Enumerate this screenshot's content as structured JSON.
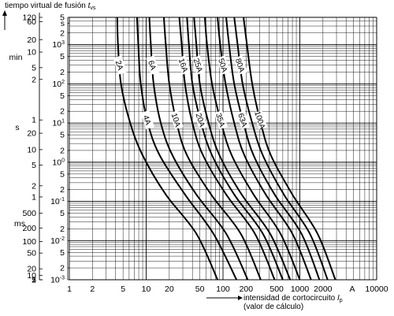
{
  "chart_data": {
    "type": "line",
    "ylabel_prefix": "tiempo virtual de fusión ",
    "ylabel_symbol": "t",
    "ylabel_sub": "vs",
    "xlabel_line1_prefix": "intensidad de cortocircuito ",
    "xlabel_symbol": "I",
    "xlabel_sub": "p",
    "xlabel_line2": "(valor de cálculo)",
    "x_unit": "A",
    "x_scale": "log",
    "y_scale": "log",
    "grid": true,
    "xlim": [
      1,
      10000
    ],
    "ylim_seconds": [
      0.001,
      5
    ],
    "x_tick_labels": [
      {
        "value": 1,
        "label": "1"
      },
      {
        "value": 2,
        "label": "2"
      },
      {
        "value": 5,
        "label": "5"
      },
      {
        "value": 10,
        "label": "10"
      },
      {
        "value": 20,
        "label": "20"
      },
      {
        "value": 50,
        "label": "50"
      },
      {
        "value": 100,
        "label": "100"
      },
      {
        "value": 200,
        "label": "200"
      },
      {
        "value": 500,
        "label": "500"
      },
      {
        "value": 1000,
        "label": "1000"
      },
      {
        "value": 2000,
        "label": "2000"
      },
      {
        "value": 10000,
        "label": "10000"
      }
    ],
    "y_inner_labels": [
      {
        "value": 5,
        "label": "5",
        "exp": ""
      },
      {
        "value": 3.5,
        "label": "s",
        "exp": ""
      },
      {
        "value": 2,
        "label": "2",
        "exp": ""
      },
      {
        "value": 1,
        "label": "10",
        "exp": "3"
      },
      {
        "value": 0.5,
        "label": "5",
        "exp": ""
      },
      {
        "value": 0.2,
        "label": "2",
        "exp": ""
      },
      {
        "value": 0.1,
        "label": "10",
        "exp": "2"
      },
      {
        "value": 0.05,
        "label": "5",
        "exp": ""
      },
      {
        "value": 0.02,
        "label": "2",
        "exp": ""
      },
      {
        "value": 0.01,
        "label": "10",
        "exp": "1"
      },
      {
        "value": 0.005,
        "label": "5",
        "exp": ""
      },
      {
        "value": 0.002,
        "label": "2",
        "exp": ""
      },
      {
        "value": 0.001,
        "label": "10",
        "exp": "0"
      },
      {
        "value": 0.0005,
        "label": "5",
        "exp": ""
      },
      {
        "value": 0.0002,
        "label": "2",
        "exp": ""
      },
      {
        "value": 0.0001,
        "label": "10",
        "exp": "-1"
      },
      {
        "value": 5e-05,
        "label": "5",
        "exp": ""
      },
      {
        "value": 2e-05,
        "label": "2",
        "exp": ""
      },
      {
        "value": 1e-05,
        "label": "10",
        "exp": "-2"
      },
      {
        "value": 5e-06,
        "label": "5",
        "exp": ""
      },
      {
        "value": 2e-06,
        "label": "2",
        "exp": ""
      },
      {
        "value": 1e-06,
        "label": "10",
        "exp": "-3"
      }
    ],
    "y_outer_labels": [
      {
        "value": 5,
        "label": "120"
      },
      {
        "value": 3.9,
        "label": "60"
      },
      {
        "value": 1.35,
        "label": "20"
      },
      {
        "value": 0.65,
        "label": "10"
      },
      {
        "value": 0.26,
        "label": "5"
      },
      {
        "value": 0.13,
        "label": "2"
      },
      {
        "value": 0.012,
        "label": "1"
      },
      {
        "value": 0.0055,
        "label": "20"
      },
      {
        "value": 0.0021,
        "label": "10"
      },
      {
        "value": 0.00085,
        "label": "5"
      },
      {
        "value": 0.00025,
        "label": "2"
      },
      {
        "value": 0.00013,
        "label": "1"
      },
      {
        "value": 5e-05,
        "label": "500"
      },
      {
        "value": 2.1e-05,
        "label": "200"
      },
      {
        "value": 9.5e-06,
        "label": "100"
      },
      {
        "value": 4.8e-06,
        "label": "50"
      },
      {
        "value": 1.9e-06,
        "label": "20"
      },
      {
        "value": 1.3e-06,
        "label": "10"
      },
      {
        "value": 9e-07,
        "label": "5"
      },
      {
        "value": 4.5e-07,
        "label": "2"
      },
      {
        "value": 1e-06,
        "label": "1"
      }
    ],
    "unit_labels": [
      "min",
      "s",
      "ms"
    ],
    "series": [
      {
        "name": "2A",
        "points": [
          [
            4.2,
            5
          ],
          [
            4.3,
            1
          ],
          [
            4.7,
            0.1
          ],
          [
            6.2,
            0.01
          ],
          [
            9,
            0.0015
          ],
          [
            18,
            0.00015
          ],
          [
            45,
            1.5e-05
          ],
          [
            85,
            1e-06
          ]
        ]
      },
      {
        "name": "4A",
        "points": [
          [
            7.6,
            5
          ],
          [
            7.9,
            1
          ],
          [
            8.5,
            0.1
          ],
          [
            10.5,
            0.01
          ],
          [
            15,
            0.0015
          ],
          [
            32,
            0.00015
          ],
          [
            75,
            1.5e-05
          ],
          [
            150,
            1e-06
          ]
        ]
      },
      {
        "name": "6A",
        "points": [
          [
            11,
            5
          ],
          [
            11.5,
            1
          ],
          [
            12.5,
            0.1
          ],
          [
            15.5,
            0.01
          ],
          [
            22,
            0.0015
          ],
          [
            45,
            0.00015
          ],
          [
            110,
            1.5e-05
          ],
          [
            210,
            1e-06
          ]
        ]
      },
      {
        "name": "10A",
        "points": [
          [
            17,
            5
          ],
          [
            18,
            1
          ],
          [
            20,
            0.1
          ],
          [
            25,
            0.01
          ],
          [
            34,
            0.0015
          ],
          [
            70,
            0.00015
          ],
          [
            170,
            1.5e-05
          ],
          [
            310,
            1e-06
          ]
        ]
      },
      {
        "name": "16A",
        "points": [
          [
            27,
            5
          ],
          [
            29,
            1
          ],
          [
            32,
            0.1
          ],
          [
            40,
            0.01
          ],
          [
            55,
            0.0015
          ],
          [
            110,
            0.00015
          ],
          [
            260,
            1.5e-05
          ],
          [
            470,
            1e-06
          ]
        ]
      },
      {
        "name": "20A",
        "points": [
          [
            34,
            5
          ],
          [
            36,
            1
          ],
          [
            40,
            0.1
          ],
          [
            52,
            0.01
          ],
          [
            72,
            0.0015
          ],
          [
            140,
            0.00015
          ],
          [
            330,
            1.5e-05
          ],
          [
            600,
            1e-06
          ]
        ]
      },
      {
        "name": "25A",
        "points": [
          [
            42,
            5
          ],
          [
            45,
            1
          ],
          [
            50,
            0.1
          ],
          [
            65,
            0.01
          ],
          [
            90,
            0.0015
          ],
          [
            175,
            0.00015
          ],
          [
            410,
            1.5e-05
          ],
          [
            750,
            1e-06
          ]
        ]
      },
      {
        "name": "35A",
        "points": [
          [
            58,
            5
          ],
          [
            62,
            1
          ],
          [
            72,
            0.1
          ],
          [
            95,
            0.01
          ],
          [
            130,
            0.0015
          ],
          [
            250,
            0.00015
          ],
          [
            560,
            1.5e-05
          ],
          [
            1000,
            1e-06
          ]
        ]
      },
      {
        "name": "50A",
        "points": [
          [
            85,
            5
          ],
          [
            92,
            1
          ],
          [
            108,
            0.1
          ],
          [
            140,
            0.01
          ],
          [
            190,
            0.0015
          ],
          [
            360,
            0.00015
          ],
          [
            800,
            1.5e-05
          ],
          [
            1400,
            1e-06
          ]
        ]
      },
      {
        "name": "63A",
        "points": [
          [
            110,
            5
          ],
          [
            120,
            1
          ],
          [
            140,
            0.1
          ],
          [
            185,
            0.01
          ],
          [
            250,
            0.0015
          ],
          [
            470,
            0.00015
          ],
          [
            1050,
            1.5e-05
          ],
          [
            1800,
            1e-06
          ]
        ]
      },
      {
        "name": "80A",
        "points": [
          [
            140,
            5
          ],
          [
            155,
            1
          ],
          [
            180,
            0.1
          ],
          [
            240,
            0.01
          ],
          [
            330,
            0.0015
          ],
          [
            620,
            0.00015
          ],
          [
            1350,
            1.5e-05
          ],
          [
            2300,
            1e-06
          ]
        ]
      },
      {
        "name": "100A",
        "points": [
          [
            185,
            5
          ],
          [
            205,
            1
          ],
          [
            240,
            0.1
          ],
          [
            310,
            0.01
          ],
          [
            420,
            0.0015
          ],
          [
            800,
            0.00015
          ],
          [
            1700,
            1.5e-05
          ],
          [
            2900,
            1e-06
          ]
        ]
      }
    ],
    "curve_label_times": {
      "2A": 0.3,
      "4A": 0.012,
      "6A": 0.3,
      "10A": 0.012,
      "16A": 0.3,
      "20A": 0.012,
      "25A": 0.3,
      "35A": 0.012,
      "50A": 0.3,
      "63A": 0.012,
      "80A": 0.3,
      "100A": 0.012
    }
  }
}
